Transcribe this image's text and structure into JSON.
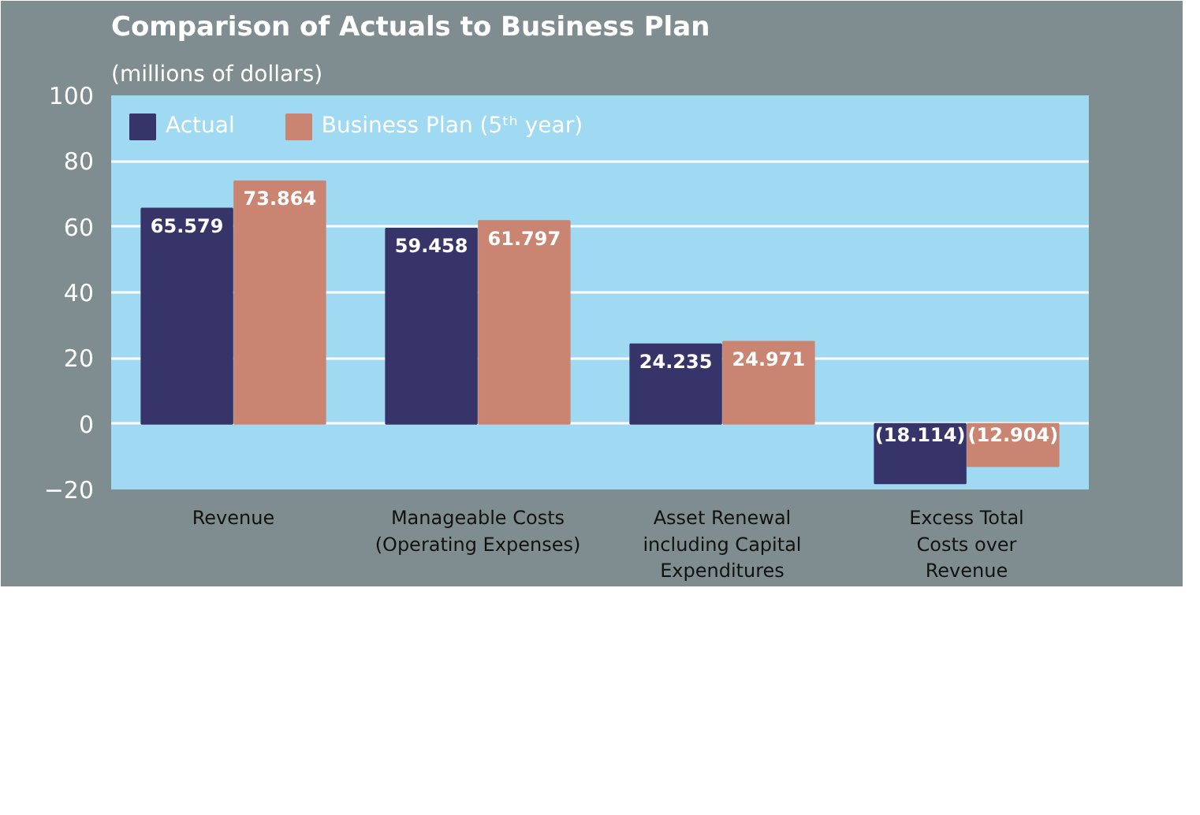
{
  "chart_data": {
    "type": "bar",
    "title": "Comparison of Actuals to Business Plan",
    "subtitle": "(millions of dollars)",
    "categories": [
      "Revenue",
      "Manageable Costs\n(Operating Expenses)",
      "Asset Renewal\nincluding Capital\nExpenditures",
      "Excess Total\nCosts over\nRevenue"
    ],
    "series": [
      {
        "name": "Actual",
        "color": "#37346a",
        "values": [
          65.579,
          59.458,
          24.235,
          -18.114
        ],
        "value_labels": [
          "65.579",
          "59.458",
          "24.235",
          "(18.114)"
        ]
      },
      {
        "name": "Business Plan (5ᵗʰ year)",
        "color": "#c98572",
        "values": [
          73.864,
          61.797,
          24.971,
          -12.904
        ],
        "value_labels": [
          "73.864",
          "61.797",
          "24.971",
          "(12.904)"
        ]
      }
    ],
    "ylim": [
      -20,
      100
    ],
    "yticks": [
      -20,
      0,
      20,
      40,
      60,
      80,
      100
    ],
    "grid": "y",
    "legend": "top left"
  }
}
